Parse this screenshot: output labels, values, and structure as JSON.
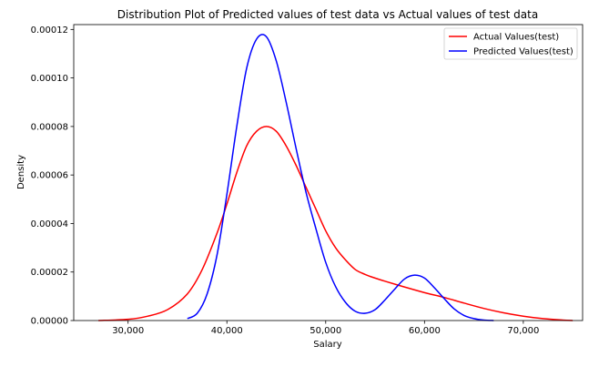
{
  "chart_data": {
    "type": "line",
    "title": "Distribution Plot of Predicted values of test data vs Actual values of test data",
    "xlabel": "Salary",
    "ylabel": "Density",
    "xlim": [
      24500,
      76000
    ],
    "ylim": [
      0,
      0.000122
    ],
    "x_ticks": [
      30000,
      40000,
      50000,
      60000,
      70000
    ],
    "x_tick_labels": [
      "30,000",
      "40,000",
      "50,000",
      "60,000",
      "70,000"
    ],
    "y_ticks": [
      0,
      2e-05,
      4e-05,
      6e-05,
      8e-05,
      0.0001,
      0.00012
    ],
    "y_tick_labels": [
      "0.00000",
      "0.00002",
      "0.00004",
      "0.00006",
      "0.00008",
      "0.00010",
      "0.00012"
    ],
    "grid": false,
    "legend_position": "top-right",
    "series": [
      {
        "name": "Actual Values(test)",
        "color": "#ff0000",
        "x": [
          27000,
          30000,
          32000,
          34000,
          36000,
          37500,
          39000,
          40000,
          41000,
          42000,
          43000,
          44000,
          45000,
          46000,
          47000,
          48000,
          49000,
          50000,
          51000,
          52000,
          53000,
          54000,
          55000,
          56000,
          58000,
          60000,
          62000,
          64000,
          66000,
          68000,
          70000,
          72000,
          74000,
          75000
        ],
        "y": [
          0.0,
          5e-07,
          1.8e-06,
          4.5e-06,
          1.1e-05,
          2.1e-05,
          3.6e-05,
          4.8e-05,
          6.1e-05,
          7.2e-05,
          7.8e-05,
          8e-05,
          7.8e-05,
          7.2e-05,
          6.4e-05,
          5.5e-05,
          4.6e-05,
          3.7e-05,
          3e-05,
          2.5e-05,
          2.1e-05,
          1.9e-05,
          1.75e-05,
          1.62e-05,
          1.38e-05,
          1.15e-05,
          9.5e-06,
          7.2e-06,
          5e-06,
          3.2e-06,
          1.8e-06,
          8e-07,
          2e-07,
          0.0
        ]
      },
      {
        "name": "Predicted Values(test)",
        "color": "#0000ff",
        "x": [
          36000,
          37000,
          38000,
          39000,
          40000,
          41000,
          42000,
          43000,
          44000,
          45000,
          46000,
          47000,
          48000,
          49000,
          50000,
          51000,
          52000,
          53000,
          54000,
          55000,
          56000,
          57000,
          58000,
          59000,
          60000,
          61000,
          62000,
          63000,
          64000,
          65000,
          66000,
          67000
        ],
        "y": [
          8e-07,
          3e-06,
          1.1e-05,
          2.7e-05,
          5.2e-05,
          8e-05,
          0.000104,
          0.000116,
          0.000117,
          0.000107,
          9e-05,
          7.1e-05,
          5.3e-05,
          3.8e-05,
          2.4e-05,
          1.4e-05,
          7.5e-06,
          3.8e-06,
          3e-06,
          4.5e-06,
          8.5e-06,
          1.3e-05,
          1.72e-05,
          1.87e-05,
          1.75e-05,
          1.35e-05,
          9e-06,
          4.8e-06,
          2.1e-06,
          8e-07,
          2e-07,
          0.0
        ]
      }
    ]
  }
}
